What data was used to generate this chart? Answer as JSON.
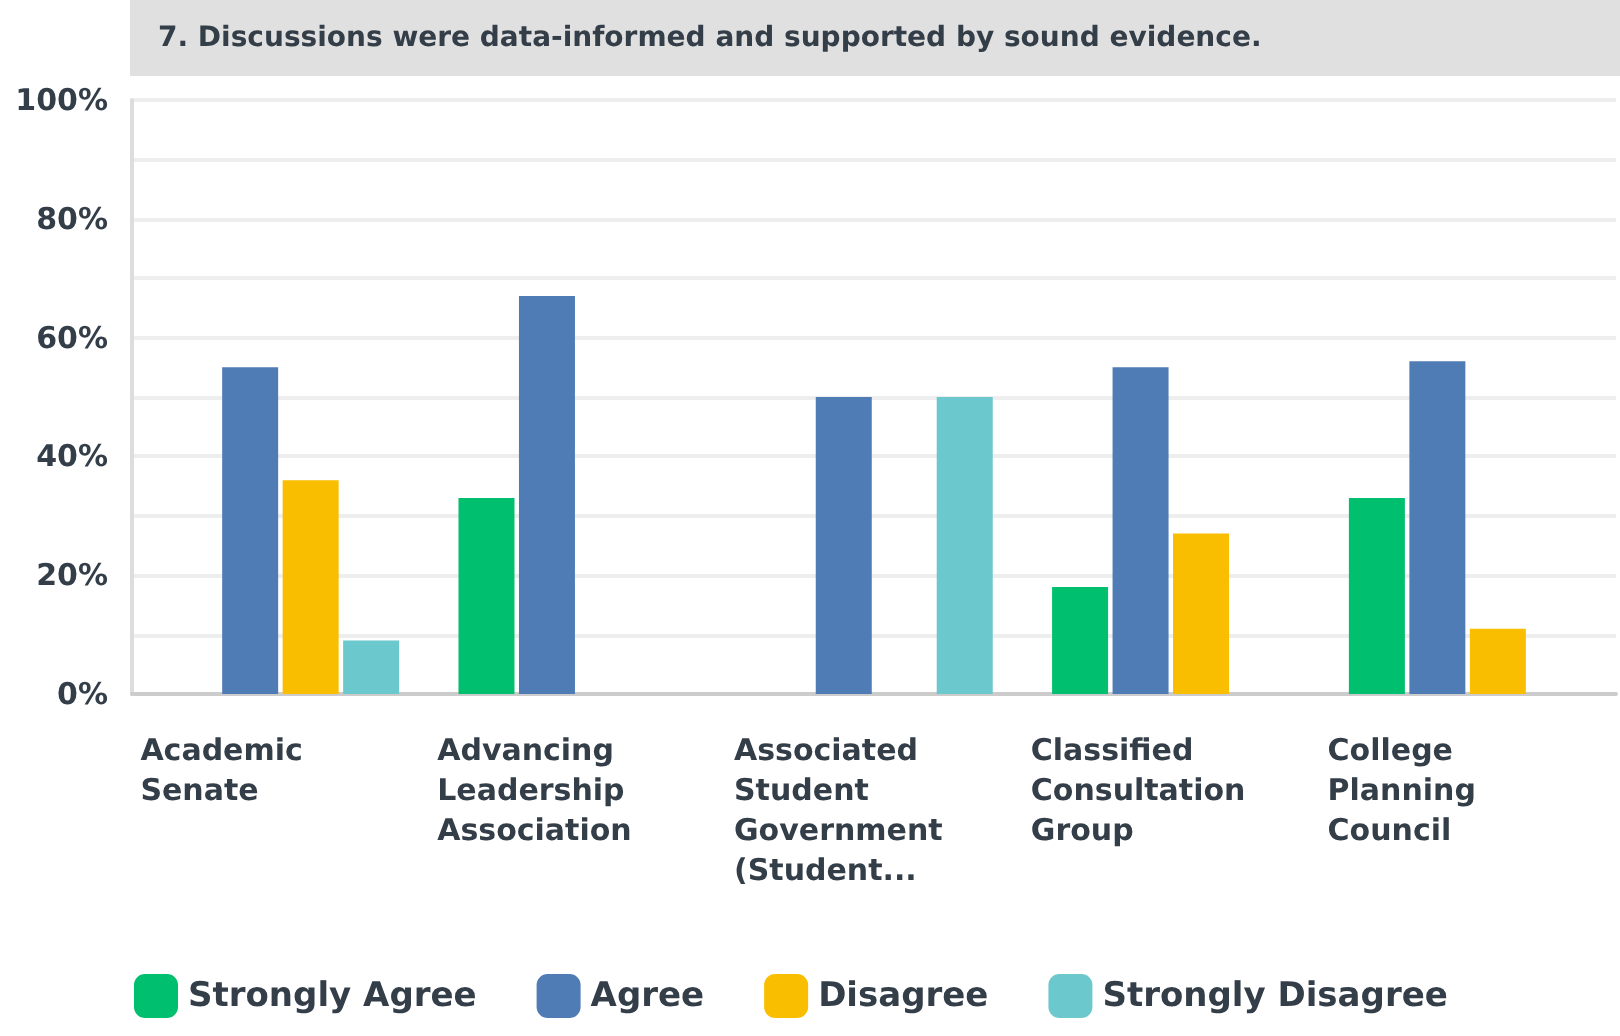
{
  "chart_data": {
    "type": "bar",
    "title": "7. Discussions were data-informed and supported by sound evidence.",
    "categories": [
      "Academic Senate",
      "Advancing Leadership Association",
      "Associated Student Government (Student...",
      "Classified Consultation Group",
      "College Planning Council"
    ],
    "series": [
      {
        "name": "Strongly Agree",
        "color": "#00bf6f",
        "values": [
          0,
          33,
          0,
          18,
          33
        ]
      },
      {
        "name": "Agree",
        "color": "#507cb6",
        "values": [
          55,
          67,
          50,
          55,
          56
        ]
      },
      {
        "name": "Disagree",
        "color": "#f9be00",
        "values": [
          36,
          0,
          0,
          27,
          11
        ]
      },
      {
        "name": "Strongly Disagree",
        "color": "#6bc8cd",
        "values": [
          9,
          0,
          50,
          0,
          0
        ]
      }
    ],
    "ylim": [
      0,
      100
    ],
    "yticks": [
      {
        "value": 0,
        "label": "0%"
      },
      {
        "value": 10,
        "label": null
      },
      {
        "value": 20,
        "label": "20%"
      },
      {
        "value": 30,
        "label": null
      },
      {
        "value": 40,
        "label": "40%"
      },
      {
        "value": 50,
        "label": null
      },
      {
        "value": 60,
        "label": "60%"
      },
      {
        "value": 70,
        "label": null
      },
      {
        "value": 80,
        "label": "80%"
      },
      {
        "value": 90,
        "label": null
      },
      {
        "value": 100,
        "label": "100%"
      }
    ],
    "grid": "y",
    "legend": "bottom left"
  }
}
